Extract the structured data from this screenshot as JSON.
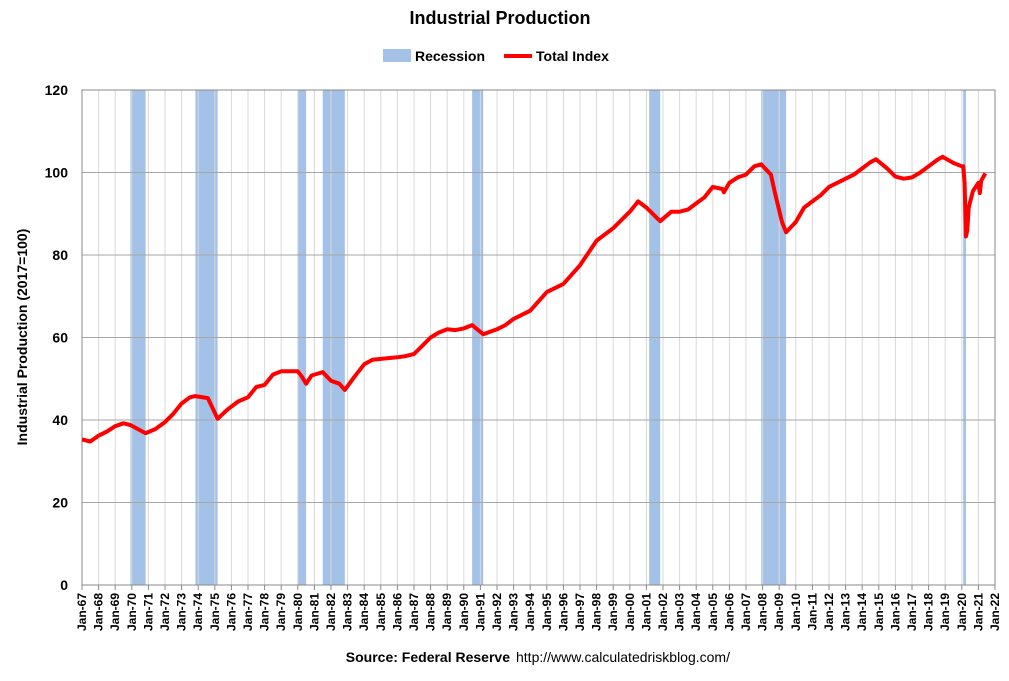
{
  "chart_data": {
    "type": "line",
    "title": "Industrial Production",
    "y_label": "Industrial Production (2017=100)",
    "source": "Source: Federal Reserve",
    "url": "http://www.calculatedriskblog.com/",
    "recession_name": "Recession",
    "recession_color": "#a4c2e8",
    "recessions": [
      [
        "Dec-69",
        "Nov-70"
      ],
      [
        "Nov-73",
        "Mar-75"
      ],
      [
        "Jan-80",
        "Jul-80"
      ],
      [
        "Jul-81",
        "Nov-82"
      ],
      [
        "Jul-90",
        "Mar-91"
      ],
      [
        "Mar-01",
        "Nov-01"
      ],
      [
        "Dec-07",
        "Jun-09"
      ],
      [
        "Feb-20",
        "Apr-20"
      ]
    ],
    "x": [
      "Jan-67",
      "Jul-67",
      "Jan-68",
      "Jul-68",
      "Jan-69",
      "Jul-69",
      "Dec-69",
      "Nov-70",
      "Jun-71",
      "Jan-72",
      "Jul-72",
      "Jan-73",
      "Jul-73",
      "Nov-73",
      "Aug-74",
      "Mar-75",
      "Oct-75",
      "Jun-76",
      "Jan-77",
      "Jul-77",
      "Jan-78",
      "Jul-78",
      "Jan-79",
      "Jan-80",
      "Apr-80",
      "Jul-80",
      "Nov-80",
      "Jul-81",
      "Jan-82",
      "Jul-82",
      "Nov-82",
      "Jun-83",
      "Jan-84",
      "Jul-84",
      "Jan-85",
      "Jan-86",
      "Jul-86",
      "Jan-87",
      "Jul-87",
      "Jan-88",
      "Jul-88",
      "Jan-89",
      "Jul-89",
      "Jan-90",
      "Jul-90",
      "Mar-91",
      "Jan-92",
      "Jul-92",
      "Jan-93",
      "Jan-94",
      "Jan-95",
      "Jan-96",
      "Jan-97",
      "Jan-98",
      "Jan-99",
      "Jan-00",
      "Jul-00",
      "Jan-01",
      "Nov-01",
      "Jul-02",
      "Jan-03",
      "Jul-03",
      "Jan-04",
      "Jul-04",
      "Jan-05",
      "Aug-05",
      "Sep-05",
      "Jan-06",
      "Jul-06",
      "Jan-07",
      "Jul-07",
      "Dec-07",
      "Jul-08",
      "Oct-08",
      "Mar-09",
      "Jun-09",
      "Jan-10",
      "Jul-10",
      "Jan-11",
      "Jul-11",
      "Jan-12",
      "Jul-12",
      "Jan-13",
      "Jul-13",
      "Jan-14",
      "Jul-14",
      "Nov-14",
      "Jul-15",
      "Jan-16",
      "Jul-16",
      "Jan-17",
      "Jul-17",
      "Jan-18",
      "Jul-18",
      "Nov-18",
      "Jul-19",
      "Jan-20",
      "Feb-20",
      "Mar-20",
      "Apr-20",
      "May-20",
      "Jun-20",
      "Sep-20",
      "Jan-21",
      "Feb-21",
      "Mar-21",
      "Jun-21"
    ],
    "series": [
      {
        "name": "Total Index",
        "color": "#ff0000",
        "values": [
          35.3,
          34.8,
          36.2,
          37.2,
          38.5,
          39.2,
          38.8,
          36.8,
          37.8,
          39.5,
          41.5,
          44,
          45.5,
          45.8,
          45.3,
          40.3,
          42.5,
          44.5,
          45.5,
          48,
          48.5,
          51,
          51.8,
          51.8,
          50.5,
          48.8,
          50.8,
          51.6,
          49.5,
          48.8,
          47.3,
          50.5,
          53.5,
          54.6,
          54.8,
          55.2,
          55.5,
          56,
          58,
          60,
          61.2,
          62,
          61.8,
          62.2,
          63,
          60.8,
          62,
          63,
          64.5,
          66.5,
          71,
          73,
          77.5,
          83.5,
          86.5,
          90.5,
          93,
          91.5,
          88.2,
          90.5,
          90.5,
          91,
          92.5,
          94,
          96.5,
          96,
          95.2,
          97.5,
          98.8,
          99.5,
          101.5,
          102,
          99.5,
          95,
          88,
          85.5,
          88,
          91.5,
          93,
          94.5,
          96.5,
          97.5,
          98.5,
          99.5,
          101,
          102.5,
          103.2,
          101,
          99,
          98.5,
          98.8,
          100,
          101.5,
          103,
          103.8,
          102.3,
          101.5,
          101.5,
          97.5,
          84.5,
          86,
          91.5,
          95.5,
          97.5,
          95,
          98,
          99.8
        ]
      }
    ],
    "ylim": [
      0,
      120
    ],
    "yticks": [
      0,
      20,
      40,
      60,
      80,
      100,
      120
    ],
    "xlim": [
      "Jan-67",
      "Jan-22"
    ],
    "xticks": [
      "Jan-67",
      "Jan-68",
      "Jan-69",
      "Jan-70",
      "Jan-71",
      "Jan-72",
      "Jan-73",
      "Jan-74",
      "Jan-75",
      "Jan-76",
      "Jan-77",
      "Jan-78",
      "Jan-79",
      "Jan-80",
      "Jan-81",
      "Jan-82",
      "Jan-83",
      "Jan-84",
      "Jan-85",
      "Jan-86",
      "Jan-87",
      "Jan-88",
      "Jan-89",
      "Jan-90",
      "Jan-91",
      "Jan-92",
      "Jan-93",
      "Jan-94",
      "Jan-95",
      "Jan-96",
      "Jan-97",
      "Jan-98",
      "Jan-99",
      "Jan-00",
      "Jan-01",
      "Jan-02",
      "Jan-03",
      "Jan-04",
      "Jan-05",
      "Jan-06",
      "Jan-07",
      "Jan-08",
      "Jan-09",
      "Jan-10",
      "Jan-11",
      "Jan-12",
      "Jan-13",
      "Jan-14",
      "Jan-15",
      "Jan-16",
      "Jan-17",
      "Jan-18",
      "Jan-19",
      "Jan-20",
      "Jan-21",
      "Jan-22"
    ],
    "grid": true
  }
}
